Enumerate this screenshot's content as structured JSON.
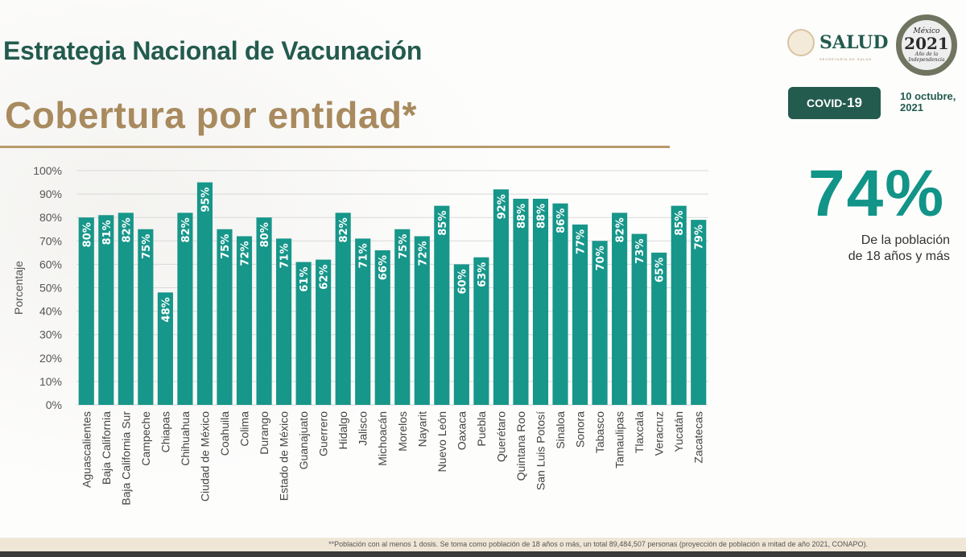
{
  "header": {
    "title": "Estrategia Nacional de Vacunación",
    "subtitle": "Cobertura por entidad*",
    "logo_salud": "SALUD",
    "logo_salud_sub": "SECRETARÍA DE SALUD",
    "logo_2021_top": "México",
    "logo_2021_year": "2021",
    "logo_2021_bottom": "Año de la Independencia",
    "badge_prefix": "COVID-",
    "badge_num": "19",
    "date_line1": "10 octubre,",
    "date_line2": "2021"
  },
  "summary": {
    "value": "74%",
    "caption_line1": "De la población",
    "caption_line2": "de 18 años y más"
  },
  "footer": {
    "note": "**Población con al menos 1 dosis. Se toma como población de 18 años o más, un total 89,484,507 personas (proyección de población a mitad de año 2021, CONAPO)."
  },
  "colors": {
    "bar": "#17968a",
    "title": "#235b4e",
    "gold": "#a88a5e"
  },
  "chart_data": {
    "type": "bar",
    "title": "",
    "xlabel": "",
    "ylabel": "Porcentaje",
    "ylim": [
      0,
      100
    ],
    "yticks": [
      "0%",
      "10%",
      "20%",
      "30%",
      "40%",
      "50%",
      "60%",
      "70%",
      "80%",
      "90%",
      "100%"
    ],
    "grid": true,
    "categories": [
      "Aguascalientes",
      "Baja California",
      "Baja California Sur",
      "Campeche",
      "Chiapas",
      "Chihuahua",
      "Ciudad de México",
      "Coahuila",
      "Colima",
      "Durango",
      "Estado de México",
      "Guanajuato",
      "Guerrero",
      "Hidalgo",
      "Jalisco",
      "Michoacán",
      "Morelos",
      "Nayarit",
      "Nuevo León",
      "Oaxaca",
      "Puebla",
      "Querétaro",
      "Quintana Roo",
      "San Luis Potosí",
      "Sinaloa",
      "Sonora",
      "Tabasco",
      "Tamaulipas",
      "Tlaxcala",
      "Veracruz",
      "Yucatán",
      "Zacatecas"
    ],
    "values": [
      80,
      81,
      82,
      75,
      48,
      82,
      95,
      75,
      72,
      80,
      71,
      61,
      62,
      82,
      71,
      66,
      75,
      72,
      85,
      60,
      63,
      92,
      88,
      88,
      86,
      77,
      70,
      82,
      73,
      65,
      85,
      79
    ],
    "labels": [
      "80%",
      "81%",
      "82%",
      "75%",
      "48%",
      "82%",
      "95%",
      "75%",
      "72%",
      "80%",
      "71%",
      "61%",
      "62%",
      "82%",
      "71%",
      "66%",
      "75%",
      "72%",
      "85%",
      "60%",
      "63%",
      "92%",
      "88%",
      "88%",
      "86%",
      "77%",
      "70%",
      "82%",
      "73%",
      "65%",
      "85%",
      "79%"
    ]
  }
}
